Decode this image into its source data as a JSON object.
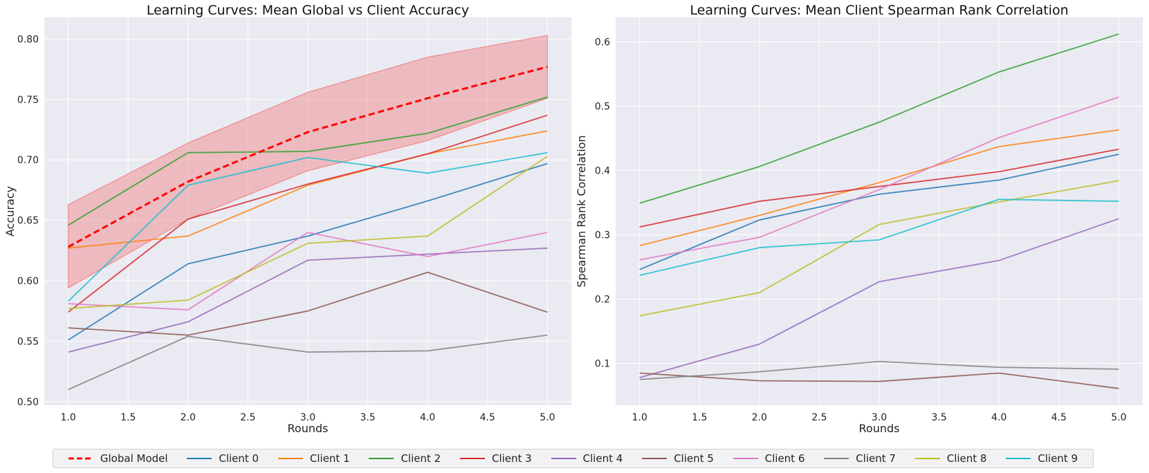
{
  "chart_data": [
    {
      "type": "line",
      "title": "Learning Curves: Mean Global vs Client Accuracy",
      "xlabel": "Rounds",
      "ylabel": "Accuracy",
      "xlim": [
        0.8,
        5.2
      ],
      "ylim": [
        0.497,
        0.818
      ],
      "xticks": [
        "1.0",
        "1.5",
        "2.0",
        "2.5",
        "3.0",
        "3.5",
        "4.0",
        "4.5",
        "5.0"
      ],
      "yticks": [
        "0.50",
        "0.55",
        "0.60",
        "0.65",
        "0.70",
        "0.75",
        "0.80"
      ],
      "grid": true,
      "x": [
        1,
        2,
        3,
        4,
        5
      ],
      "band": {
        "name": "Global Model range",
        "color": "#f08080",
        "lower": [
          0.594,
          0.651,
          0.691,
          0.716,
          0.751
        ],
        "upper": [
          0.663,
          0.714,
          0.756,
          0.785,
          0.803
        ]
      },
      "series": [
        {
          "name": "Global Model",
          "values": [
            0.628,
            0.682,
            0.723,
            0.751,
            0.777
          ],
          "color": "#ff0000",
          "dashed": true
        },
        {
          "name": "Client 0",
          "values": [
            0.551,
            0.614,
            0.637,
            0.666,
            0.697
          ],
          "color": "#1f77b4"
        },
        {
          "name": "Client 1",
          "values": [
            0.627,
            0.637,
            0.679,
            0.705,
            0.724
          ],
          "color": "#ff7f0e"
        },
        {
          "name": "Client 2",
          "values": [
            0.646,
            0.706,
            0.707,
            0.722,
            0.752
          ],
          "color": "#2ca02c"
        },
        {
          "name": "Client 3",
          "values": [
            0.574,
            0.651,
            0.68,
            0.705,
            0.737
          ],
          "color": "#d62728"
        },
        {
          "name": "Client 4",
          "values": [
            0.541,
            0.566,
            0.617,
            0.622,
            0.627
          ],
          "color": "#9467bd"
        },
        {
          "name": "Client 5",
          "values": [
            0.561,
            0.555,
            0.575,
            0.607,
            0.574
          ],
          "color": "#8c564b"
        },
        {
          "name": "Client 6",
          "values": [
            0.581,
            0.576,
            0.64,
            0.62,
            0.64
          ],
          "color": "#e377c2"
        },
        {
          "name": "Client 7",
          "values": [
            0.51,
            0.554,
            0.541,
            0.542,
            0.555
          ],
          "color": "#7f7f7f"
        },
        {
          "name": "Client 8",
          "values": [
            0.577,
            0.584,
            0.631,
            0.637,
            0.703
          ],
          "color": "#bcbd22"
        },
        {
          "name": "Client 9",
          "values": [
            0.583,
            0.679,
            0.702,
            0.689,
            0.706
          ],
          "color": "#17becf"
        }
      ]
    },
    {
      "type": "line",
      "title": "Learning Curves: Mean Client Spearman Rank Correlation",
      "xlabel": "Rounds",
      "ylabel": "Spearman Rank Correlation",
      "xlim": [
        0.8,
        5.2
      ],
      "ylim": [
        0.035,
        0.638
      ],
      "xticks": [
        "1.0",
        "1.5",
        "2.0",
        "2.5",
        "3.0",
        "3.5",
        "4.0",
        "4.5",
        "5.0"
      ],
      "yticks": [
        "0.1",
        "0.2",
        "0.3",
        "0.4",
        "0.5",
        "0.6"
      ],
      "grid": true,
      "x": [
        1,
        2,
        3,
        4,
        5
      ],
      "series": [
        {
          "name": "Client 0",
          "values": [
            0.246,
            0.323,
            0.363,
            0.385,
            0.425
          ],
          "color": "#1f77b4"
        },
        {
          "name": "Client 1",
          "values": [
            0.283,
            0.33,
            0.381,
            0.437,
            0.463
          ],
          "color": "#ff7f0e"
        },
        {
          "name": "Client 2",
          "values": [
            0.349,
            0.406,
            0.475,
            0.553,
            0.612
          ],
          "color": "#2ca02c"
        },
        {
          "name": "Client 3",
          "values": [
            0.312,
            0.352,
            0.375,
            0.398,
            0.433
          ],
          "color": "#d62728"
        },
        {
          "name": "Client 4",
          "values": [
            0.078,
            0.13,
            0.227,
            0.26,
            0.325
          ],
          "color": "#9467bd"
        },
        {
          "name": "Client 5",
          "values": [
            0.085,
            0.073,
            0.072,
            0.085,
            0.061
          ],
          "color": "#8c564b"
        },
        {
          "name": "Client 6",
          "values": [
            0.261,
            0.296,
            0.37,
            0.451,
            0.514
          ],
          "color": "#e377c2"
        },
        {
          "name": "Client 7",
          "values": [
            0.075,
            0.087,
            0.103,
            0.094,
            0.091
          ],
          "color": "#7f7f7f"
        },
        {
          "name": "Client 8",
          "values": [
            0.174,
            0.21,
            0.316,
            0.351,
            0.384
          ],
          "color": "#bcbd22"
        },
        {
          "name": "Client 9",
          "values": [
            0.237,
            0.28,
            0.292,
            0.355,
            0.352
          ],
          "color": "#17becf"
        }
      ]
    }
  ],
  "legend": {
    "items": [
      {
        "label": "Global Model",
        "color": "#ff0000",
        "dashed": true
      },
      {
        "label": "Client 0",
        "color": "#1f77b4"
      },
      {
        "label": "Client 1",
        "color": "#ff7f0e"
      },
      {
        "label": "Client 2",
        "color": "#2ca02c"
      },
      {
        "label": "Client 3",
        "color": "#d62728"
      },
      {
        "label": "Client 4",
        "color": "#9467bd"
      },
      {
        "label": "Client 5",
        "color": "#8c564b"
      },
      {
        "label": "Client 6",
        "color": "#e377c2"
      },
      {
        "label": "Client 7",
        "color": "#7f7f7f"
      },
      {
        "label": "Client 8",
        "color": "#bcbd22"
      },
      {
        "label": "Client 9",
        "color": "#17becf"
      }
    ]
  }
}
